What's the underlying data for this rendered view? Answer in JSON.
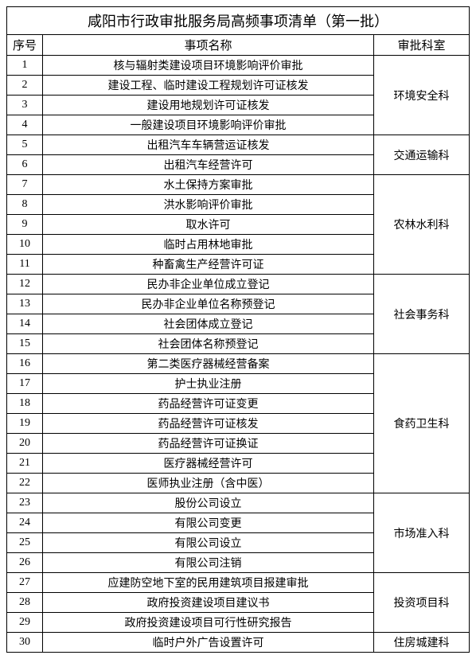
{
  "title": "咸阳市行政审批服务局高频事项清单（第一批）",
  "headers": {
    "seq": "序号",
    "name": "事项名称",
    "dept": "审批科室"
  },
  "rows": [
    {
      "seq": "1",
      "name": "核与辐射类建设项目环境影响评价审批"
    },
    {
      "seq": "2",
      "name": "建设工程、临时建设工程规划许可证核发"
    },
    {
      "seq": "3",
      "name": "建设用地规划许可证核发"
    },
    {
      "seq": "4",
      "name": "一般建设项目环境影响评价审批"
    },
    {
      "seq": "5",
      "name": "出租汽车车辆营运证核发"
    },
    {
      "seq": "6",
      "name": "出租汽车经营许可"
    },
    {
      "seq": "7",
      "name": "水土保持方案审批"
    },
    {
      "seq": "8",
      "name": "洪水影响评价审批"
    },
    {
      "seq": "9",
      "name": "取水许可"
    },
    {
      "seq": "10",
      "name": "临时占用林地审批"
    },
    {
      "seq": "11",
      "name": "种畜禽生产经营许可证"
    },
    {
      "seq": "12",
      "name": "民办非企业单位成立登记"
    },
    {
      "seq": "13",
      "name": "民办非企业单位名称预登记"
    },
    {
      "seq": "14",
      "name": "社会团体成立登记"
    },
    {
      "seq": "15",
      "name": "社会团体名称预登记"
    },
    {
      "seq": "16",
      "name": "第二类医疗器械经营备案"
    },
    {
      "seq": "17",
      "name": "护士执业注册"
    },
    {
      "seq": "18",
      "name": "药品经营许可证变更"
    },
    {
      "seq": "19",
      "name": "药品经营许可证核发"
    },
    {
      "seq": "20",
      "name": "药品经营许可证换证"
    },
    {
      "seq": "21",
      "name": "医疗器械经营许可"
    },
    {
      "seq": "22",
      "name": "医师执业注册（含中医）"
    },
    {
      "seq": "23",
      "name": "股份公司设立"
    },
    {
      "seq": "24",
      "name": "有限公司变更"
    },
    {
      "seq": "25",
      "name": "有限公司设立"
    },
    {
      "seq": "26",
      "name": "有限公司注销"
    },
    {
      "seq": "27",
      "name": "应建防空地下室的民用建筑项目报建审批"
    },
    {
      "seq": "28",
      "name": "政府投资建设项目建议书"
    },
    {
      "seq": "29",
      "name": "政府投资建设项目可行性研究报告"
    },
    {
      "seq": "30",
      "name": "临时户外广告设置许可"
    }
  ],
  "departments": [
    {
      "name": "环境安全科",
      "startRow": 0,
      "span": 4
    },
    {
      "name": "交通运输科",
      "startRow": 4,
      "span": 2
    },
    {
      "name": "农林水利科",
      "startRow": 6,
      "span": 5
    },
    {
      "name": "社会事务科",
      "startRow": 11,
      "span": 4
    },
    {
      "name": "食药卫生科",
      "startRow": 15,
      "span": 7
    },
    {
      "name": "市场准入科",
      "startRow": 22,
      "span": 4
    },
    {
      "name": "投资项目科",
      "startRow": 26,
      "span": 3
    },
    {
      "name": "住房城建科",
      "startRow": 29,
      "span": 1
    }
  ],
  "styling": {
    "border_color": "#000000",
    "background_color": "#ffffff",
    "text_color": "#000000",
    "title_fontsize": 18,
    "header_fontsize": 15,
    "cell_fontsize": 14,
    "font_family": "SimSun",
    "col_widths": {
      "seq": 45,
      "dept": 120
    }
  }
}
